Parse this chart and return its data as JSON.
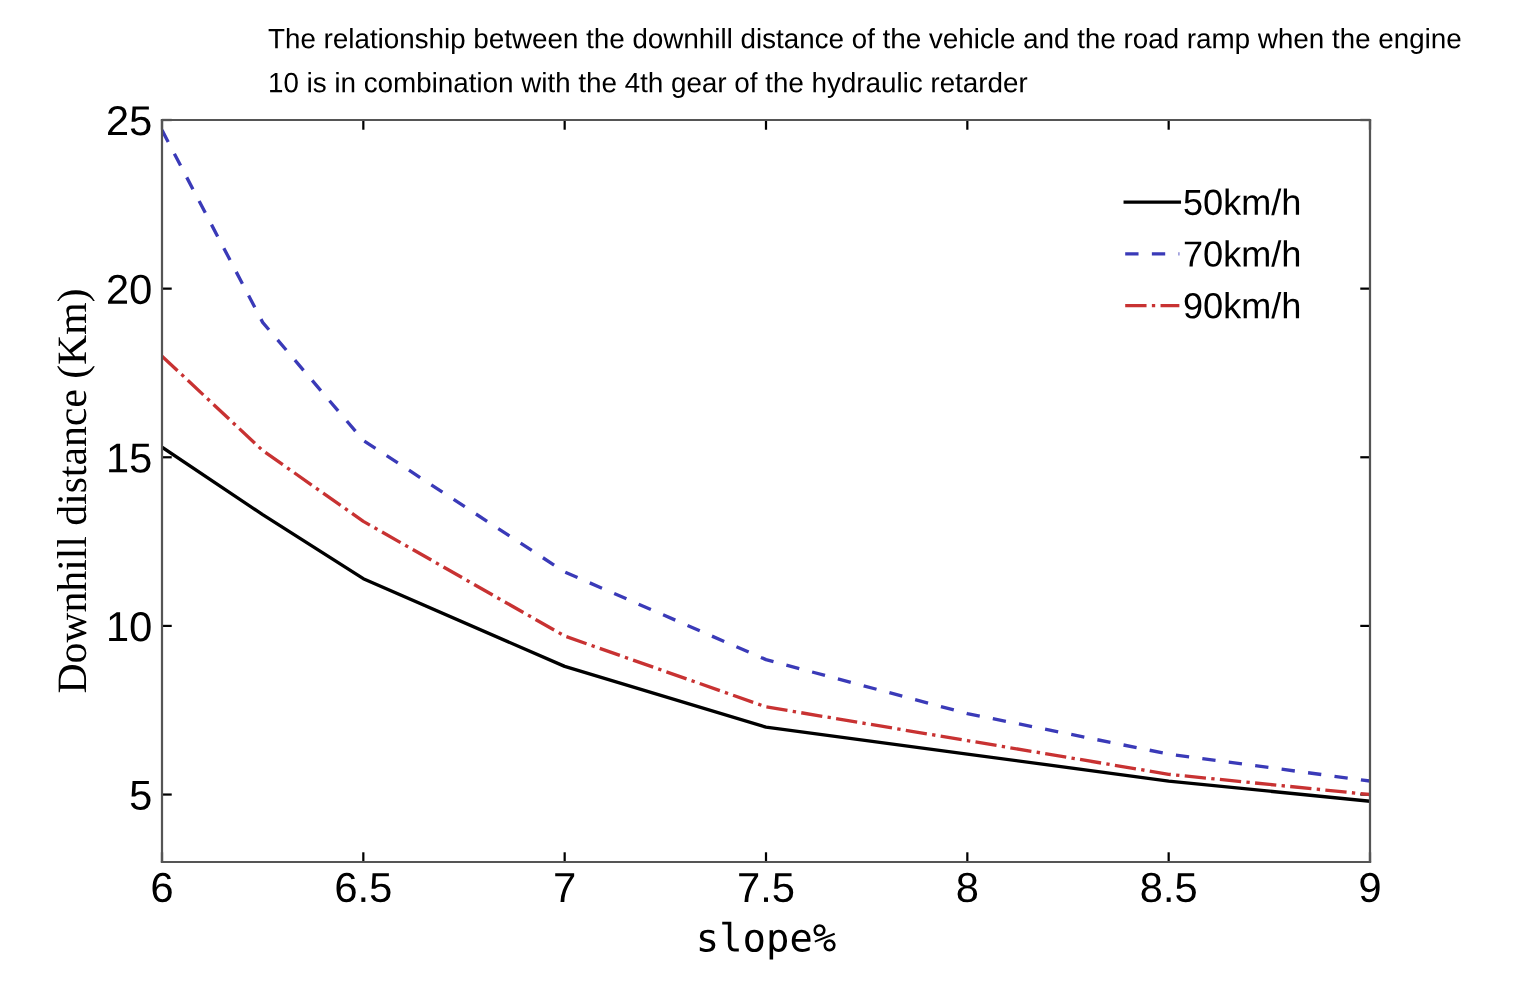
{
  "chart_data": {
    "type": "line",
    "title": "The relationship between the downhill distance of the vehicle and the road ramp when the engine\n10 is in combination with the 4th gear of the hydraulic retarder",
    "xlabel": "slope%",
    "ylabel": "Downhill distance (Km)",
    "x": [
      6,
      6.25,
      6.5,
      7,
      7.5,
      8,
      8.5,
      9
    ],
    "series": [
      {
        "name": "50km/h",
        "color": "#000000",
        "line_style": "solid",
        "values": [
          15.3,
          13.3,
          11.4,
          8.8,
          7.0,
          6.2,
          5.4,
          4.8
        ]
      },
      {
        "name": "70km/h",
        "color": "#3a3ab8",
        "line_style": "dashed",
        "values": [
          24.7,
          19.0,
          15.5,
          11.6,
          9.0,
          7.4,
          6.2,
          5.4
        ]
      },
      {
        "name": "90km/h",
        "color": "#c83232",
        "line_style": "dashdot",
        "values": [
          18.0,
          15.2,
          13.1,
          9.7,
          7.6,
          6.6,
          5.6,
          5.0
        ]
      }
    ],
    "xlim": [
      6,
      9
    ],
    "ylim": [
      3,
      25
    ],
    "xticks": [
      6,
      6.5,
      7,
      7.5,
      8,
      8.5,
      9
    ],
    "yticks": [
      5,
      10,
      15,
      20,
      25
    ],
    "grid": false,
    "legend": "top right"
  }
}
